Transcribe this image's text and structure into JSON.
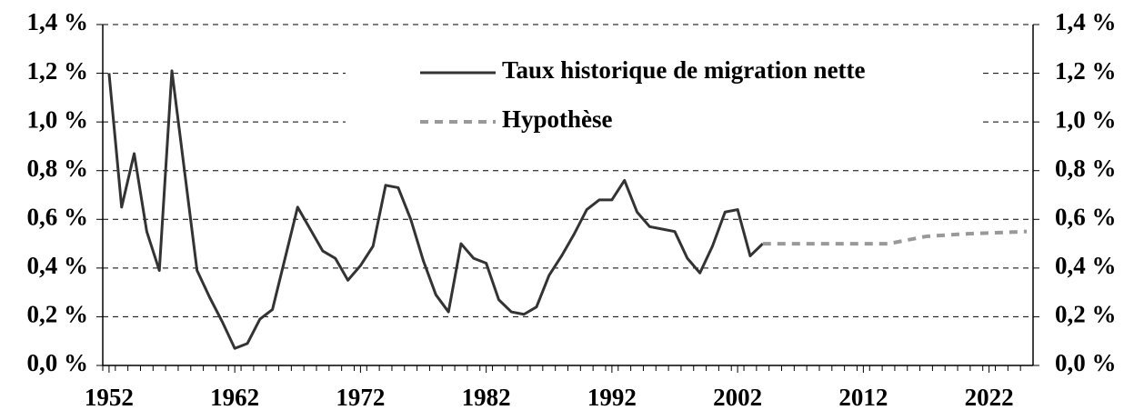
{
  "chart_data": {
    "type": "line",
    "series": [
      {
        "name": "Taux historique de migration nette",
        "color": "#333333",
        "dash": false,
        "x": [
          1952,
          1953,
          1954,
          1955,
          1956,
          1957,
          1958,
          1959,
          1960,
          1961,
          1962,
          1963,
          1964,
          1965,
          1966,
          1967,
          1968,
          1969,
          1970,
          1971,
          1972,
          1973,
          1974,
          1975,
          1976,
          1977,
          1978,
          1979,
          1980,
          1981,
          1982,
          1983,
          1984,
          1985,
          1986,
          1987,
          1988,
          1989,
          1990,
          1991,
          1992,
          1993,
          1994,
          1995,
          1996,
          1997,
          1998,
          1999,
          2000,
          2001,
          2002,
          2003,
          2004
        ],
        "values": [
          1.2,
          0.65,
          0.87,
          0.55,
          0.39,
          1.21,
          0.8,
          0.39,
          0.28,
          0.18,
          0.07,
          0.09,
          0.19,
          0.23,
          0.44,
          0.65,
          0.56,
          0.47,
          0.44,
          0.35,
          0.41,
          0.49,
          0.74,
          0.73,
          0.6,
          0.43,
          0.29,
          0.22,
          0.5,
          0.44,
          0.42,
          0.27,
          0.22,
          0.21,
          0.24,
          0.37,
          0.45,
          0.54,
          0.64,
          0.68,
          0.68,
          0.76,
          0.63,
          0.57,
          0.56,
          0.55,
          0.44,
          0.38,
          0.49,
          0.63,
          0.64,
          0.45,
          0.5
        ]
      },
      {
        "name": "Hypothèse",
        "color": "#999999",
        "dash": true,
        "x": [
          2004,
          2009,
          2014,
          2015,
          2017,
          2020,
          2025
        ],
        "values": [
          0.5,
          0.5,
          0.5,
          0.51,
          0.53,
          0.54,
          0.55
        ]
      }
    ],
    "xlim": [
      1951.5,
      2025.5
    ],
    "xticks": [
      1952,
      1962,
      1972,
      1982,
      1992,
      2002,
      2012,
      2022
    ],
    "ylim": [
      0,
      1.4
    ],
    "yticks": [
      {
        "value": 0,
        "label": "0,0 %"
      },
      {
        "value": 0.2,
        "label": "0,2 %"
      },
      {
        "value": 0.4,
        "label": "0,4 %"
      },
      {
        "value": 0.6,
        "label": "0,6 %"
      },
      {
        "value": 0.8,
        "label": "0,8 %"
      },
      {
        "value": 1.0,
        "label": "1,0 %"
      },
      {
        "value": 1.2,
        "label": "1,2 %"
      },
      {
        "value": 1.4,
        "label": "1,4 %"
      }
    ],
    "y2lim": [
      0,
      1.4
    ],
    "y2ticks": [
      {
        "value": 0,
        "label": "0,0 %"
      },
      {
        "value": 0.2,
        "label": "0,2 %"
      },
      {
        "value": 0.4,
        "label": "0,4 %"
      },
      {
        "value": 0.6,
        "label": "0,6 %"
      },
      {
        "value": 0.8,
        "label": "0,8 %"
      },
      {
        "value": 1.0,
        "label": "1,0 %"
      },
      {
        "value": 1.2,
        "label": "1,2 %"
      },
      {
        "value": 1.4,
        "label": "1,4 %"
      }
    ],
    "grid": true
  }
}
